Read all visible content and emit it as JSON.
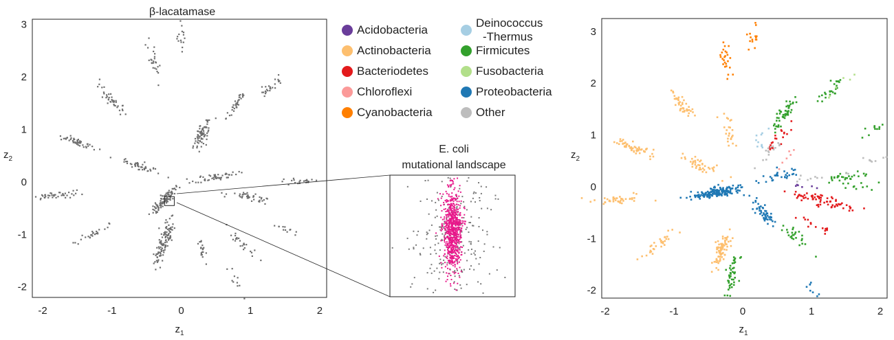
{
  "chart_data": [
    {
      "type": "scatter",
      "title": "β-lacatamase",
      "xlabel": "z",
      "xlabel_sub": "1",
      "ylabel": "z",
      "ylabel_sub": "2",
      "xlim": [
        -2.15,
        2.1
      ],
      "ylim": [
        -2.2,
        3.1
      ],
      "xticks": [
        "-2",
        "-1",
        "0",
        "1",
        "2"
      ],
      "xtick_values": [
        -2,
        -1,
        0,
        1,
        2
      ],
      "yticks": [
        "3",
        "2",
        "1",
        "0",
        "-1",
        "-2"
      ],
      "ytick_values": [
        3,
        2,
        1,
        0,
        -1,
        -2
      ],
      "point_color": "#6e6e6e",
      "grid": false,
      "highlight_box": {
        "x": [
          -0.24,
          -0.1
        ],
        "y": [
          -0.45,
          -0.28
        ]
      },
      "clusters": [
        {
          "x": -0.25,
          "y": -0.35,
          "count": 90
        },
        {
          "x": -1.8,
          "y": -0.25,
          "count": 40
        },
        {
          "x": -1.5,
          "y": 0.75,
          "count": 50
        },
        {
          "x": -1.0,
          "y": 1.55,
          "count": 40
        },
        {
          "x": -0.4,
          "y": 2.3,
          "count": 25
        },
        {
          "x": 0.0,
          "y": 2.8,
          "count": 15
        },
        {
          "x": 0.3,
          "y": 0.9,
          "count": 70
        },
        {
          "x": 0.8,
          "y": 1.5,
          "count": 35
        },
        {
          "x": 1.3,
          "y": 1.8,
          "count": 25
        },
        {
          "x": 1.7,
          "y": 0.0,
          "count": 20
        },
        {
          "x": 1.0,
          "y": -0.3,
          "count": 40
        },
        {
          "x": 0.9,
          "y": -1.2,
          "count": 25
        },
        {
          "x": -0.2,
          "y": -1.0,
          "count": 70
        },
        {
          "x": -0.3,
          "y": -1.3,
          "count": 45
        },
        {
          "x": -1.3,
          "y": -1.0,
          "count": 25
        },
        {
          "x": 0.3,
          "y": -1.3,
          "count": 20
        },
        {
          "x": 0.8,
          "y": -1.9,
          "count": 10
        },
        {
          "x": -0.6,
          "y": 0.3,
          "count": 45
        },
        {
          "x": 0.5,
          "y": 0.1,
          "count": 50
        },
        {
          "x": 1.5,
          "y": -0.9,
          "count": 12
        }
      ]
    },
    {
      "type": "scatter",
      "title": "E. coli mutational landscape",
      "title_lines": [
        "E. coli",
        "mutational landscape"
      ],
      "grid": false,
      "series": [
        {
          "color": "#777777",
          "center": [
            0.5,
            0.48
          ],
          "spread": [
            0.16,
            0.3
          ],
          "count": 260
        },
        {
          "color": "#e8178a",
          "center": [
            0.5,
            0.45
          ],
          "spread": [
            0.035,
            0.17
          ],
          "count": 700
        }
      ]
    },
    {
      "type": "scatter",
      "xlabel": "z",
      "xlabel_sub": "1",
      "ylabel": "z",
      "ylabel_sub": "2",
      "xlim": [
        -2.05,
        2.1
      ],
      "ylim": [
        -2.15,
        3.25
      ],
      "xticks": [
        "-2",
        "-1",
        "0",
        "1",
        "2"
      ],
      "xtick_values": [
        -2,
        -1,
        0,
        1,
        2
      ],
      "yticks": [
        "3",
        "2",
        "1",
        "0",
        "-1",
        "-2"
      ],
      "ytick_values": [
        3,
        2,
        1,
        0,
        -1,
        -2
      ],
      "grid": false,
      "legend": {
        "placement": "between panels",
        "columns": [
          [
            {
              "label": "Acidobacteria",
              "color": "#6a3d9a"
            },
            {
              "label": "Actinobacteria",
              "color": "#fdbf6f"
            },
            {
              "label": "Bacteriodetes",
              "color": "#e31a1c"
            },
            {
              "label": "Chloroflexi",
              "color": "#fb9a99"
            },
            {
              "label": "Cyanobacteria",
              "color": "#ff7f00"
            }
          ],
          [
            {
              "label": "Deinococcus",
              "label2": "-Thermus",
              "color": "#a6cee3"
            },
            {
              "label": "Firmicutes",
              "color": "#33a02c"
            },
            {
              "label": "Fusobacteria",
              "color": "#b2df8a"
            },
            {
              "label": "Proteobacteria",
              "color": "#1f78b4"
            },
            {
              "label": "Other",
              "color": "#bdbdbd"
            }
          ]
        ]
      },
      "clusters": [
        {
          "group": "Actinobacteria",
          "x": -1.6,
          "y": 0.75,
          "count": 55
        },
        {
          "group": "Actinobacteria",
          "x": -1.85,
          "y": -0.25,
          "count": 40
        },
        {
          "group": "Actinobacteria",
          "x": -0.9,
          "y": 1.6,
          "count": 45
        },
        {
          "group": "Actinobacteria",
          "x": -0.3,
          "y": -1.2,
          "count": 80
        },
        {
          "group": "Actinobacteria",
          "x": -1.2,
          "y": -1.1,
          "count": 30
        },
        {
          "group": "Actinobacteria",
          "x": -0.6,
          "y": 0.4,
          "count": 40
        },
        {
          "group": "Actinobacteria",
          "x": -0.2,
          "y": 1.1,
          "count": 25
        },
        {
          "group": "Cyanobacteria",
          "x": -0.25,
          "y": 2.5,
          "count": 25
        },
        {
          "group": "Cyanobacteria",
          "x": 0.15,
          "y": 2.85,
          "count": 15
        },
        {
          "group": "Proteobacteria",
          "x": -0.35,
          "y": -0.1,
          "count": 160
        },
        {
          "group": "Proteobacteria",
          "x": 0.3,
          "y": -0.5,
          "count": 50
        },
        {
          "group": "Proteobacteria",
          "x": 0.5,
          "y": 0.2,
          "count": 30
        },
        {
          "group": "Proteobacteria",
          "x": 0.95,
          "y": -1.95,
          "count": 8
        },
        {
          "group": "Firmicutes",
          "x": -0.15,
          "y": -1.7,
          "count": 45
        },
        {
          "group": "Firmicutes",
          "x": 0.6,
          "y": 1.4,
          "count": 50
        },
        {
          "group": "Firmicutes",
          "x": 1.3,
          "y": 1.9,
          "count": 25
        },
        {
          "group": "Firmicutes",
          "x": 1.5,
          "y": 0.2,
          "count": 30
        },
        {
          "group": "Firmicutes",
          "x": 0.8,
          "y": -1.0,
          "count": 25
        },
        {
          "group": "Firmicutes",
          "x": 1.85,
          "y": 1.1,
          "count": 10
        },
        {
          "group": "Firmicutes",
          "x": 1.8,
          "y": 0.0,
          "count": 10
        },
        {
          "group": "Bacteriodetes",
          "x": 1.0,
          "y": -0.2,
          "count": 45
        },
        {
          "group": "Bacteriodetes",
          "x": 1.35,
          "y": -0.35,
          "count": 25
        },
        {
          "group": "Bacteriodetes",
          "x": 0.5,
          "y": 0.9,
          "count": 20
        },
        {
          "group": "Bacteriodetes",
          "x": 1.0,
          "y": -0.7,
          "count": 15
        },
        {
          "group": "Other",
          "x": 0.4,
          "y": 0.7,
          "count": 15
        },
        {
          "group": "Other",
          "x": 1.85,
          "y": 0.5,
          "count": 8
        },
        {
          "group": "Other",
          "x": 1.1,
          "y": 0.2,
          "count": 10
        },
        {
          "group": "Fusobacteria",
          "x": 1.45,
          "y": 1.95,
          "count": 6
        },
        {
          "group": "Deinococcus-Thermus",
          "x": 0.3,
          "y": 1.0,
          "count": 10
        },
        {
          "group": "Acidobacteria",
          "x": 0.85,
          "y": 0.0,
          "count": 6
        },
        {
          "group": "Chloroflexi",
          "x": 0.6,
          "y": 0.55,
          "count": 6
        }
      ]
    }
  ]
}
